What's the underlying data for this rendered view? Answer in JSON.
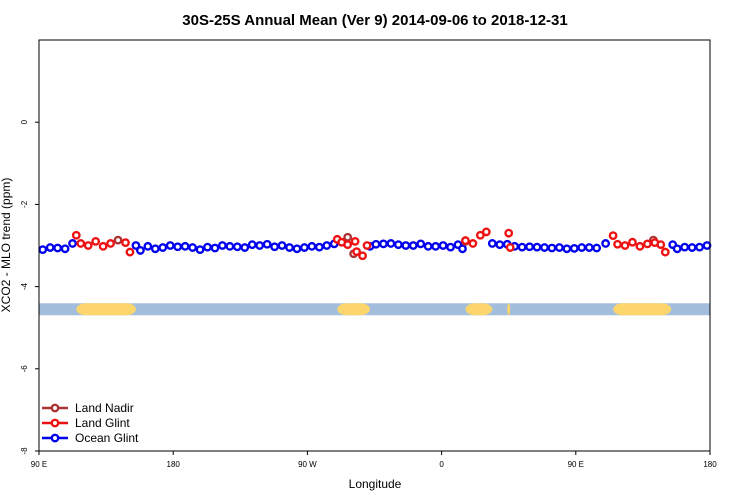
{
  "chart_data": {
    "type": "scatter",
    "title": "30S-25S Annual Mean (Ver 9)   2014-09-06 to 2018-12-31",
    "xlabel": "Longitude",
    "ylabel": "XCO2 - MLO trend (ppm)",
    "x_ticks": [
      {
        "value": 0,
        "label": "90 E"
      },
      {
        "value": 90,
        "label": "180"
      },
      {
        "value": 180,
        "label": "90 W"
      },
      {
        "value": 270,
        "label": "0"
      },
      {
        "value": 360,
        "label": "90 E"
      },
      {
        "value": 450,
        "label": "180"
      }
    ],
    "y_ticks": [
      {
        "value": 0,
        "label": "0"
      },
      {
        "value": -2,
        "label": "-2"
      },
      {
        "value": -4,
        "label": "-4"
      },
      {
        "value": -6,
        "label": "-6"
      },
      {
        "value": -8,
        "label": "-8"
      }
    ],
    "xlim": [
      0,
      450
    ],
    "ylim": [
      -8,
      2
    ],
    "grid": false,
    "legend_position": "bottom-left",
    "land_mask": {
      "y": -4.55,
      "ocean_color": "#a3bddc",
      "land_color": "#fcd56c",
      "land_segments": [
        [
          25,
          65
        ],
        [
          200,
          222
        ],
        [
          286,
          304
        ],
        [
          314,
          316
        ],
        [
          385,
          424
        ]
      ]
    },
    "series": [
      {
        "name": "Land Nadir",
        "color": "#aa3333",
        "points": [
          {
            "x": 53.0,
            "y": -2.87
          },
          {
            "x": 207.0,
            "y": -2.8
          },
          {
            "x": 211.0,
            "y": -3.2
          },
          {
            "x": 286.0,
            "y": -2.9
          },
          {
            "x": 412.0,
            "y": -2.87
          }
        ]
      },
      {
        "name": "Land Glint",
        "color": "#ee1111",
        "points": [
          {
            "x": 25.0,
            "y": -2.75
          },
          {
            "x": 28.0,
            "y": -2.95
          },
          {
            "x": 33.0,
            "y": -3.0
          },
          {
            "x": 38.0,
            "y": -2.9
          },
          {
            "x": 43.0,
            "y": -3.02
          },
          {
            "x": 48.0,
            "y": -2.95
          },
          {
            "x": 58.0,
            "y": -2.93
          },
          {
            "x": 61.0,
            "y": -3.16
          },
          {
            "x": 200.0,
            "y": -2.85
          },
          {
            "x": 203.0,
            "y": -2.92
          },
          {
            "x": 207.0,
            "y": -2.98
          },
          {
            "x": 212.0,
            "y": -2.9
          },
          {
            "x": 213.0,
            "y": -3.15
          },
          {
            "x": 217.0,
            "y": -3.25
          },
          {
            "x": 220.0,
            "y": -3.0
          },
          {
            "x": 286.0,
            "y": -2.88
          },
          {
            "x": 291.0,
            "y": -2.95
          },
          {
            "x": 296.0,
            "y": -2.75
          },
          {
            "x": 300.0,
            "y": -2.67
          },
          {
            "x": 315.0,
            "y": -2.7
          },
          {
            "x": 316.0,
            "y": -3.05
          },
          {
            "x": 385.0,
            "y": -2.76
          },
          {
            "x": 388.0,
            "y": -2.97
          },
          {
            "x": 393.0,
            "y": -3.0
          },
          {
            "x": 398.0,
            "y": -2.92
          },
          {
            "x": 403.0,
            "y": -3.02
          },
          {
            "x": 408.0,
            "y": -2.96
          },
          {
            "x": 413.0,
            "y": -2.93
          },
          {
            "x": 417.0,
            "y": -2.98
          },
          {
            "x": 420.0,
            "y": -3.16
          }
        ]
      },
      {
        "name": "Ocean Glint",
        "color": "#0000ee",
        "points": [
          {
            "x": 2.5,
            "y": -3.1
          },
          {
            "x": 7.5,
            "y": -3.05
          },
          {
            "x": 12.5,
            "y": -3.06
          },
          {
            "x": 17.5,
            "y": -3.08
          },
          {
            "x": 22.5,
            "y": -2.95
          },
          {
            "x": 65.0,
            "y": -3.0
          },
          {
            "x": 68.0,
            "y": -3.12
          },
          {
            "x": 73.0,
            "y": -3.02
          },
          {
            "x": 78.0,
            "y": -3.08
          },
          {
            "x": 83.0,
            "y": -3.05
          },
          {
            "x": 88.0,
            "y": -3.0
          },
          {
            "x": 93.0,
            "y": -3.03
          },
          {
            "x": 98.0,
            "y": -3.02
          },
          {
            "x": 103.0,
            "y": -3.05
          },
          {
            "x": 108.0,
            "y": -3.1
          },
          {
            "x": 113.0,
            "y": -3.04
          },
          {
            "x": 118.0,
            "y": -3.06
          },
          {
            "x": 123.0,
            "y": -3.0
          },
          {
            "x": 128.0,
            "y": -3.02
          },
          {
            "x": 133.0,
            "y": -3.03
          },
          {
            "x": 138.0,
            "y": -3.05
          },
          {
            "x": 143.0,
            "y": -2.98
          },
          {
            "x": 148.0,
            "y": -3.0
          },
          {
            "x": 153.0,
            "y": -2.97
          },
          {
            "x": 158.0,
            "y": -3.03
          },
          {
            "x": 163.0,
            "y": -3.0
          },
          {
            "x": 168.0,
            "y": -3.05
          },
          {
            "x": 173.0,
            "y": -3.08
          },
          {
            "x": 178.0,
            "y": -3.05
          },
          {
            "x": 183.0,
            "y": -3.02
          },
          {
            "x": 188.0,
            "y": -3.04
          },
          {
            "x": 193.0,
            "y": -3.0
          },
          {
            "x": 198.0,
            "y": -2.96
          },
          {
            "x": 222.0,
            "y": -3.02
          },
          {
            "x": 226.0,
            "y": -2.97
          },
          {
            "x": 231.0,
            "y": -2.96
          },
          {
            "x": 236.0,
            "y": -2.95
          },
          {
            "x": 241.0,
            "y": -2.98
          },
          {
            "x": 246.0,
            "y": -3.0
          },
          {
            "x": 251.0,
            "y": -3.0
          },
          {
            "x": 256.0,
            "y": -2.96
          },
          {
            "x": 261.0,
            "y": -3.02
          },
          {
            "x": 266.0,
            "y": -3.02
          },
          {
            "x": 271.0,
            "y": -3.0
          },
          {
            "x": 276.0,
            "y": -3.04
          },
          {
            "x": 281.0,
            "y": -2.98
          },
          {
            "x": 284.0,
            "y": -3.08
          },
          {
            "x": 304.0,
            "y": -2.95
          },
          {
            "x": 309.0,
            "y": -2.98
          },
          {
            "x": 314.0,
            "y": -2.97
          },
          {
            "x": 319.0,
            "y": -3.02
          },
          {
            "x": 324.0,
            "y": -3.04
          },
          {
            "x": 329.0,
            "y": -3.03
          },
          {
            "x": 334.0,
            "y": -3.04
          },
          {
            "x": 339.0,
            "y": -3.05
          },
          {
            "x": 344.0,
            "y": -3.06
          },
          {
            "x": 349.0,
            "y": -3.05
          },
          {
            "x": 354.0,
            "y": -3.08
          },
          {
            "x": 359.0,
            "y": -3.07
          },
          {
            "x": 364.0,
            "y": -3.05
          },
          {
            "x": 369.0,
            "y": -3.05
          },
          {
            "x": 374.0,
            "y": -3.06
          },
          {
            "x": 380.0,
            "y": -2.95
          },
          {
            "x": 425.0,
            "y": -2.98
          },
          {
            "x": 428.0,
            "y": -3.08
          },
          {
            "x": 433.0,
            "y": -3.04
          },
          {
            "x": 438.0,
            "y": -3.05
          },
          {
            "x": 443.0,
            "y": -3.04
          },
          {
            "x": 448.0,
            "y": -3.0
          }
        ]
      }
    ]
  }
}
